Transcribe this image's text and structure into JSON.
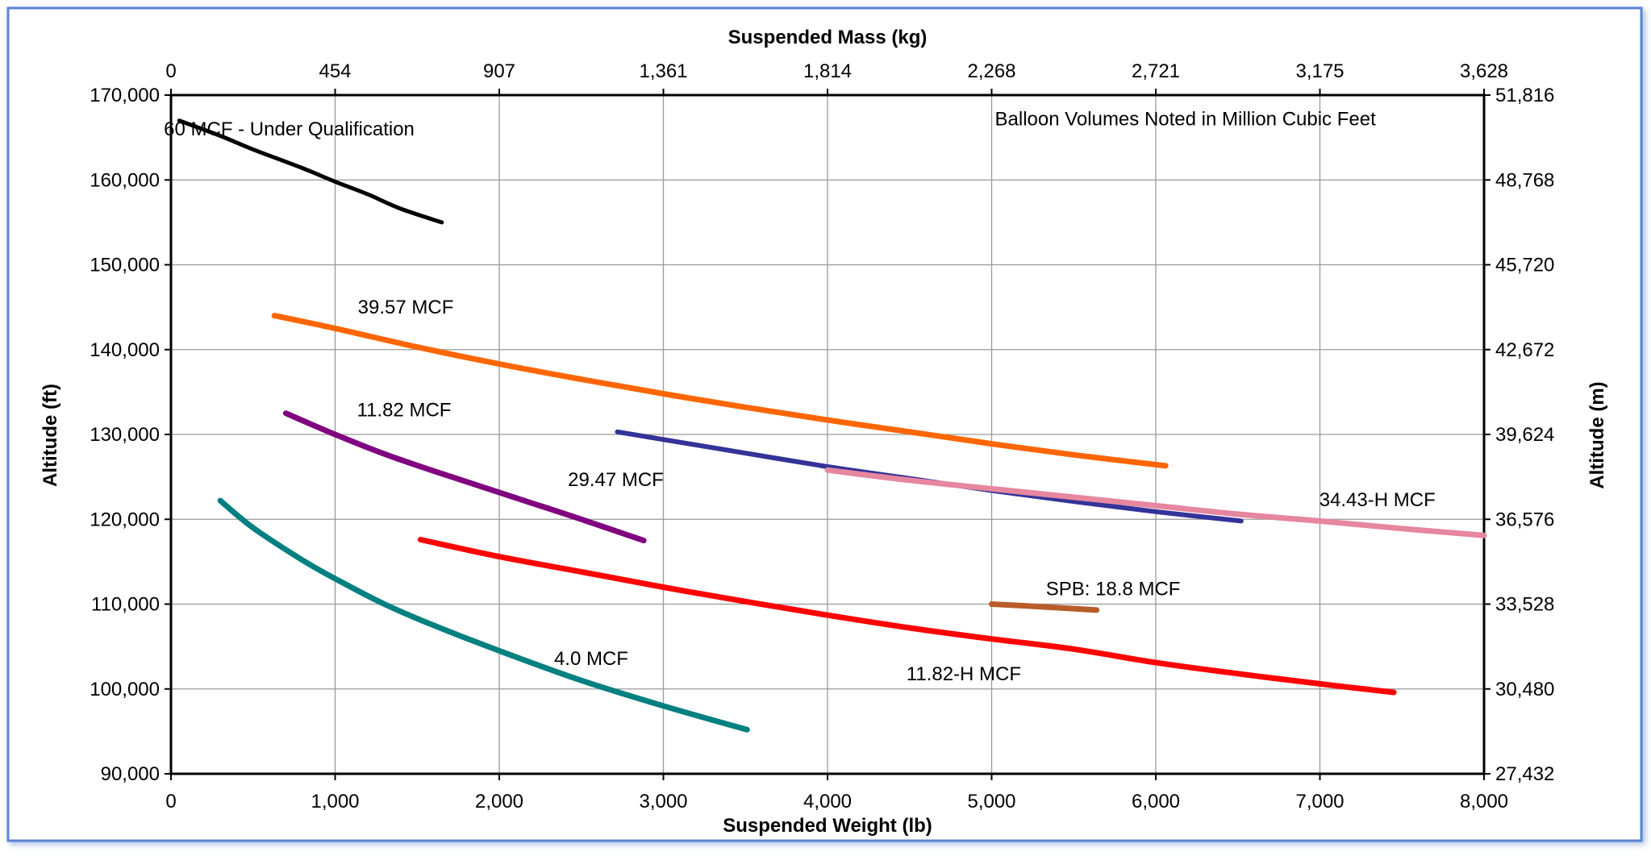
{
  "chart_data": {
    "type": "line",
    "title": "",
    "xlabel": "Suspended Weight (lb)",
    "x2label": "Suspended Mass (kg)",
    "ylabel": "Altitude (ft)",
    "y2label": "Altitude (m)",
    "xlim": [
      0,
      8000
    ],
    "ylim": [
      90000,
      170000
    ],
    "grid": true,
    "x_ticks": [
      0,
      1000,
      2000,
      3000,
      4000,
      5000,
      6000,
      7000,
      8000
    ],
    "x_tick_labels": [
      "0",
      "1,000",
      "2,000",
      "3,000",
      "4,000",
      "5,000",
      "6,000",
      "7,000",
      "8,000"
    ],
    "x2_tick_labels": [
      "0",
      "454",
      "907",
      "1,361",
      "1,814",
      "2,268",
      "2,721",
      "3,175",
      "3,628"
    ],
    "y_ticks": [
      90000,
      100000,
      110000,
      120000,
      130000,
      140000,
      150000,
      160000,
      170000
    ],
    "y_tick_labels": [
      "90,000",
      "100,000",
      "110,000",
      "120,000",
      "130,000",
      "140,000",
      "150,000",
      "160,000",
      "170,000"
    ],
    "y2_tick_labels": [
      "27,432",
      "30,480",
      "33,528",
      "36,576",
      "39,624",
      "42,672",
      "45,720",
      "48,768",
      "51,816"
    ],
    "note": "Balloon Volumes Noted in Million Cubic Feet",
    "series": [
      {
        "name": "60 MCF - Under Qualification",
        "color": "#000000",
        "width": 5,
        "x": [
          50,
          300,
          500,
          800,
          1000,
          1200,
          1400,
          1650
        ],
        "y": [
          167000,
          165200,
          163600,
          161400,
          159800,
          158300,
          156600,
          155000
        ]
      },
      {
        "name": "39.57 MCF",
        "color": "#FF6600",
        "width": 7,
        "x": [
          630,
          1000,
          1500,
          2000,
          2500,
          3000,
          3500,
          4000,
          4500,
          5000,
          5500,
          6060
        ],
        "y": [
          144000,
          142500,
          140300,
          138300,
          136500,
          134800,
          133200,
          131700,
          130300,
          128900,
          127600,
          126300
        ]
      },
      {
        "name": "11.82 MCF",
        "color": "#800080",
        "width": 7,
        "x": [
          700,
          1000,
          1300,
          1600,
          1900,
          2200,
          2500,
          2880
        ],
        "y": [
          132500,
          130000,
          127700,
          125700,
          123800,
          121900,
          120000,
          117500
        ]
      },
      {
        "name": "29.47 MCF",
        "color": "#333399",
        "width": 6,
        "x": [
          2720,
          3000,
          3500,
          4000,
          4500,
          5000,
          5500,
          6000,
          6520
        ],
        "y": [
          130300,
          129400,
          127800,
          126200,
          124800,
          123400,
          122100,
          120900,
          119800
        ]
      },
      {
        "name": "34.43-H MCF",
        "color": "#E6869F",
        "width": 7,
        "x": [
          4000,
          4500,
          5000,
          5500,
          6000,
          6500,
          7000,
          7500,
          8000
        ],
        "y": [
          125800,
          124600,
          123600,
          122600,
          121600,
          120600,
          119800,
          118900,
          118100
        ]
      },
      {
        "name": "SPB: 18.8 MCF",
        "color": "#B85C2A",
        "width": 7,
        "x": [
          5000,
          5300,
          5640
        ],
        "y": [
          110000,
          109700,
          109300
        ]
      },
      {
        "name": "11.82-H MCF",
        "color": "#FF0000",
        "width": 7,
        "x": [
          1520,
          2000,
          2500,
          3000,
          3500,
          4000,
          4500,
          5000,
          5500,
          6000,
          6500,
          7000,
          7450
        ],
        "y": [
          117600,
          115600,
          113800,
          112000,
          110300,
          108700,
          107200,
          105900,
          104700,
          103100,
          101800,
          100600,
          99600
        ]
      },
      {
        "name": "4.0 MCF",
        "color": "#008080",
        "width": 7,
        "x": [
          300,
          500,
          800,
          1000,
          1300,
          1600,
          2000,
          2500,
          3000,
          3510
        ],
        "y": [
          122200,
          119000,
          115200,
          113000,
          110000,
          107500,
          104500,
          101000,
          98000,
          95200
        ]
      }
    ],
    "annotations": [
      {
        "text": "60 MCF - Under Qualification",
        "x": 720,
        "y": 166000
      },
      {
        "text": "Balloon Volumes Noted in Million Cubic Feet",
        "x": 6180,
        "y": 167200
      },
      {
        "text": "39.57 MCF",
        "x": 1430,
        "y": 145000
      },
      {
        "text": "11.82 MCF",
        "x": 1420,
        "y": 132900
      },
      {
        "text": "29.47 MCF",
        "x": 2710,
        "y": 124700
      },
      {
        "text": "34.43-H MCF",
        "x": 7350,
        "y": 122300
      },
      {
        "text": "SPB: 18.8 MCF",
        "x": 5740,
        "y": 111800
      },
      {
        "text": "4.0 MCF",
        "x": 2560,
        "y": 103600
      },
      {
        "text": "11.82-H MCF",
        "x": 4830,
        "y": 101800
      }
    ]
  }
}
